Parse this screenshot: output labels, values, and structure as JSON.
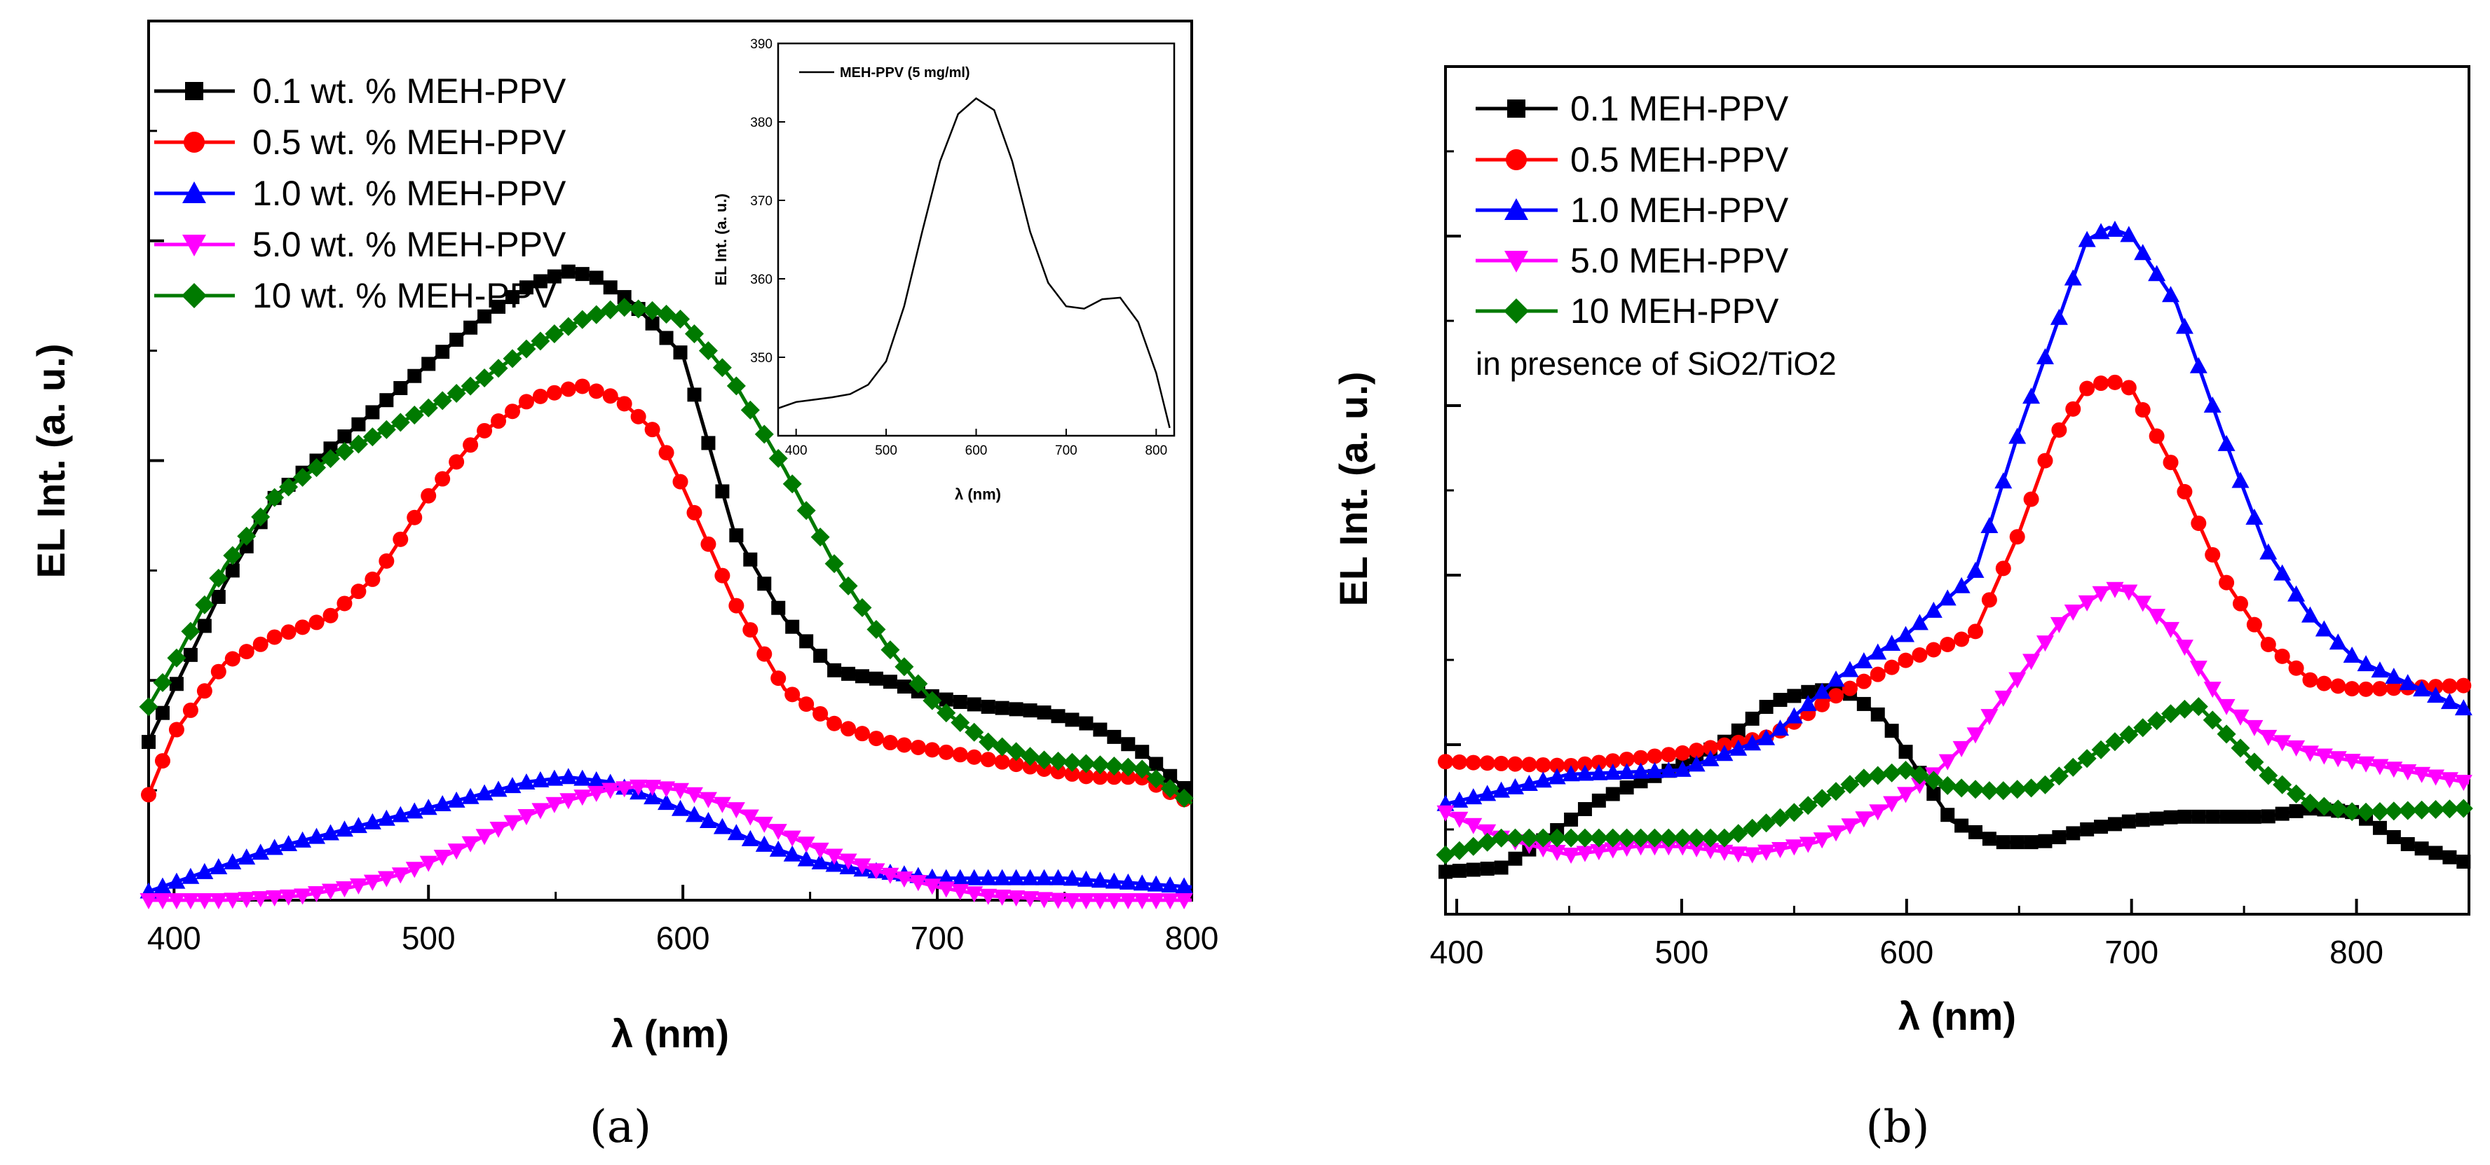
{
  "chart_data": [
    {
      "id": "a",
      "type": "line",
      "caption": "(a)",
      "xlabel": "λ (nm)",
      "ylabel": "EL Int. (a. u.)",
      "xlim": [
        390,
        800
      ],
      "ylim": [
        0,
        100
      ],
      "xticks": [
        400,
        500,
        600,
        700,
        800
      ],
      "yticks_labeled": false,
      "legend_position": "top-left",
      "series": [
        {
          "name": "0.1 wt. % MEH-PPV",
          "color": "#000000",
          "marker": "square",
          "x": [
            390,
            400,
            420,
            440,
            460,
            480,
            500,
            520,
            540,
            555,
            565,
            580,
            600,
            610,
            620,
            640,
            660,
            680,
            700,
            720,
            740,
            760,
            780,
            800
          ],
          "y": [
            18,
            24,
            36,
            46,
            51,
            56,
            61,
            66,
            70,
            71.5,
            71,
            68,
            62,
            52,
            42,
            32,
            26,
            25,
            23,
            22,
            21.5,
            20,
            17,
            12
          ]
        },
        {
          "name": "0.5 wt. % MEH-PPV",
          "color": "#ff0000",
          "marker": "circle",
          "x": [
            390,
            400,
            420,
            440,
            460,
            480,
            500,
            520,
            540,
            560,
            575,
            590,
            600,
            620,
            640,
            660,
            680,
            700,
            720,
            740,
            760,
            780,
            800
          ],
          "y": [
            12,
            19,
            27,
            30,
            32,
            37,
            46,
            53,
            57,
            58.5,
            57,
            53,
            47,
            34,
            24,
            20,
            18,
            17,
            16,
            15,
            14,
            14,
            11
          ]
        },
        {
          "name": "1.0 wt. % MEH-PPV",
          "color": "#0000ff",
          "marker": "triangle-up",
          "x": [
            390,
            400,
            420,
            440,
            460,
            480,
            500,
            520,
            540,
            555,
            570,
            590,
            610,
            630,
            650,
            670,
            700,
            750,
            800
          ],
          "y": [
            1,
            2,
            4,
            6,
            7.5,
            9,
            10.5,
            12,
            13.5,
            14,
            13.5,
            11.5,
            9,
            6.5,
            4.5,
            3.5,
            2.5,
            2.5,
            1.5
          ]
        },
        {
          "name": "5.0 wt. % MEH-PPV",
          "color": "#ff00ff",
          "marker": "triangle-down",
          "x": [
            390,
            420,
            450,
            470,
            490,
            510,
            530,
            550,
            570,
            585,
            600,
            620,
            640,
            660,
            680,
            700,
            720,
            750,
            800
          ],
          "y": [
            0,
            0,
            0.5,
            1.5,
            3,
            5.5,
            8.5,
            11,
            12.5,
            13,
            12.5,
            10.5,
            7.5,
            5,
            3,
            1.5,
            0.5,
            0,
            0
          ]
        },
        {
          "name": "10 wt. % MEH-PPV",
          "color": "#007a00",
          "marker": "diamond",
          "x": [
            390,
            400,
            420,
            440,
            460,
            480,
            500,
            520,
            540,
            560,
            575,
            590,
            600,
            620,
            640,
            660,
            680,
            700,
            720,
            740,
            760,
            780,
            800
          ],
          "y": [
            22,
            27,
            38,
            46,
            50,
            53,
            56,
            59,
            63,
            66,
            67.5,
            67,
            66,
            59,
            49,
            38,
            29,
            22,
            18,
            16,
            15.5,
            15,
            11
          ]
        }
      ],
      "inset": {
        "type": "line",
        "xlabel": "λ (nm)",
        "ylabel": "EL Int. (a. u.)",
        "xlim": [
          380,
          820
        ],
        "ylim": [
          340,
          390
        ],
        "xticks": [
          400,
          500,
          600,
          700,
          800
        ],
        "yticks": [
          350,
          360,
          370,
          380,
          390
        ],
        "legend": "MEH-PPV (5 mg/ml)",
        "x": [
          380,
          400,
          420,
          440,
          460,
          480,
          500,
          520,
          540,
          560,
          580,
          600,
          620,
          640,
          660,
          680,
          700,
          720,
          740,
          760,
          780,
          800,
          815
        ],
        "y": [
          343.5,
          344.3,
          344.6,
          344.9,
          345.3,
          346.5,
          349.5,
          356.5,
          366,
          375,
          381,
          383,
          381.5,
          375,
          366,
          359.5,
          356.5,
          356.2,
          357.4,
          357.6,
          354.5,
          348,
          341
        ]
      }
    },
    {
      "id": "b",
      "type": "line",
      "caption": "(b)",
      "xlabel": "λ (nm)",
      "ylabel": "EL Int. (a. u.)",
      "xlim": [
        395,
        850
      ],
      "ylim": [
        0,
        100
      ],
      "xticks": [
        400,
        500,
        600,
        700,
        800
      ],
      "yticks_labeled": false,
      "legend_position": "top-left",
      "annotation": "in presence of SiO2/TiO2",
      "series": [
        {
          "name": "0.1 MEH-PPV",
          "color": "#000000",
          "marker": "square",
          "x": [
            395,
            420,
            440,
            460,
            480,
            500,
            520,
            540,
            560,
            575,
            590,
            605,
            620,
            640,
            660,
            680,
            700,
            720,
            760,
            780,
            800,
            820,
            850
          ],
          "y": [
            5,
            5.5,
            9,
            13,
            15.5,
            17.5,
            20.5,
            25,
            26.5,
            26,
            23,
            17,
            11,
            8.5,
            8.5,
            10,
            11,
            11.5,
            11.5,
            12.5,
            12,
            8.5,
            6
          ]
        },
        {
          "name": "0.5 MEH-PPV",
          "color": "#ff0000",
          "marker": "circle",
          "x": [
            395,
            450,
            500,
            540,
            570,
            600,
            630,
            650,
            665,
            680,
            690,
            700,
            720,
            740,
            760,
            780,
            800,
            850
          ],
          "y": [
            18,
            17.5,
            19,
            21,
            26,
            30,
            33,
            45,
            56,
            62,
            63,
            62,
            52,
            40,
            32,
            27.5,
            26.5,
            27
          ]
        },
        {
          "name": "1.0 MEH-PPV",
          "color": "#0000ff",
          "marker": "triangle-up",
          "x": [
            395,
            450,
            500,
            540,
            570,
            600,
            630,
            650,
            670,
            680,
            690,
            700,
            720,
            740,
            760,
            780,
            800,
            850
          ],
          "y": [
            13,
            16.5,
            17,
            21,
            28,
            33,
            40,
            57,
            72,
            79.5,
            81,
            80,
            72,
            57,
            43,
            35,
            30,
            24
          ]
        },
        {
          "name": "5.0 MEH-PPV",
          "color": "#ff00ff",
          "marker": "triangle-down",
          "x": [
            395,
            420,
            450,
            480,
            500,
            530,
            560,
            590,
            610,
            630,
            650,
            670,
            690,
            700,
            720,
            740,
            760,
            780,
            800,
            850
          ],
          "y": [
            12,
            9,
            7,
            8,
            8,
            7,
            8.5,
            12.5,
            16,
            21,
            28,
            35,
            38.5,
            38,
            33,
            25,
            21,
            19,
            18,
            15.5
          ]
        },
        {
          "name": "10 MEH-PPV",
          "color": "#007a00",
          "marker": "diamond",
          "x": [
            395,
            420,
            450,
            480,
            520,
            550,
            580,
            600,
            620,
            640,
            660,
            690,
            720,
            730,
            760,
            780,
            800,
            850
          ],
          "y": [
            7,
            9,
            9,
            9,
            9,
            12,
            16,
            17,
            15,
            14.5,
            15,
            20,
            24,
            24.5,
            16.5,
            13,
            12,
            12.5
          ]
        }
      ]
    }
  ]
}
